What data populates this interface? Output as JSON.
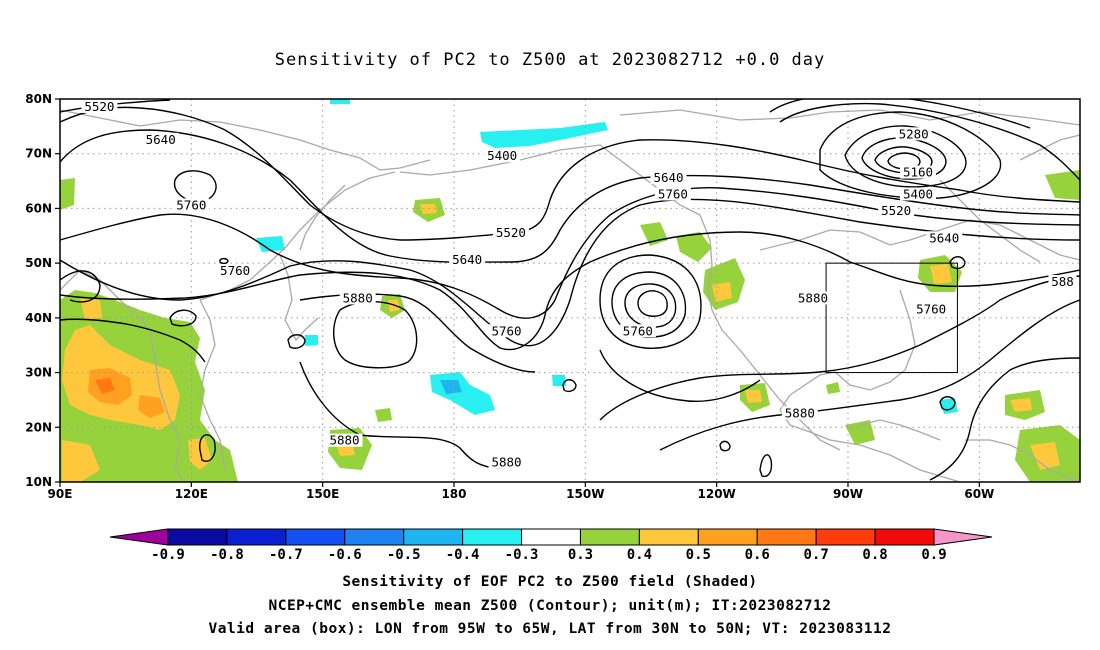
{
  "title": "Sensitivity of PC2 to Z500 at 2023082712 +0.0 day",
  "map": {
    "lon_labels": [
      {
        "text": "90E",
        "lon": 90
      },
      {
        "text": "120E",
        "lon": 120
      },
      {
        "text": "150E",
        "lon": 150
      },
      {
        "text": "180",
        "lon": 180
      },
      {
        "text": "150W",
        "lon": 210
      },
      {
        "text": "120W",
        "lon": 240
      },
      {
        "text": "90W",
        "lon": 270
      },
      {
        "text": "60W",
        "lon": 300
      }
    ],
    "lat_labels": [
      {
        "text": "80N",
        "lat": 80
      },
      {
        "text": "70N",
        "lat": 70
      },
      {
        "text": "60N",
        "lat": 60
      },
      {
        "text": "50N",
        "lat": 50
      },
      {
        "text": "40N",
        "lat": 40
      },
      {
        "text": "30N",
        "lat": 30
      },
      {
        "text": "20N",
        "lat": 20
      },
      {
        "text": "10N",
        "lat": 10
      }
    ],
    "lon_range": [
      90,
      323
    ],
    "lat_range": [
      10,
      80
    ],
    "valid_box": {
      "lon": [
        265,
        295
      ],
      "lat": [
        30,
        50
      ]
    },
    "contour_labels": [
      {
        "text": "5520",
        "lon": 99,
        "lat": 78
      },
      {
        "text": "5640",
        "lon": 113,
        "lat": 72
      },
      {
        "text": "5760",
        "lon": 120,
        "lat": 60
      },
      {
        "text": "5400",
        "lon": 191,
        "lat": 69
      },
      {
        "text": "5520",
        "lon": 193,
        "lat": 55
      },
      {
        "text": "5640",
        "lon": 183,
        "lat": 50
      },
      {
        "text": "5760",
        "lon": 130,
        "lat": 48
      },
      {
        "text": "5880",
        "lon": 158,
        "lat": 43
      },
      {
        "text": "5760",
        "lon": 192,
        "lat": 37
      },
      {
        "text": "5760",
        "lon": 222,
        "lat": 37
      },
      {
        "text": "5640",
        "lon": 229,
        "lat": 65
      },
      {
        "text": "5760",
        "lon": 230,
        "lat": 62
      },
      {
        "text": "5880",
        "lon": 262,
        "lat": 43
      },
      {
        "text": "5880",
        "lon": 259,
        "lat": 22
      },
      {
        "text": "5880",
        "lon": 155,
        "lat": 17
      },
      {
        "text": "5880",
        "lon": 192,
        "lat": 13
      },
      {
        "text": "5280",
        "lon": 285,
        "lat": 73
      },
      {
        "text": "5160",
        "lon": 286,
        "lat": 66
      },
      {
        "text": "5400",
        "lon": 286,
        "lat": 62
      },
      {
        "text": "5520",
        "lon": 281,
        "lat": 59
      },
      {
        "text": "5640",
        "lon": 292,
        "lat": 54
      },
      {
        "text": "5760",
        "lon": 289,
        "lat": 41
      },
      {
        "text": "588",
        "lon": 319,
        "lat": 46
      }
    ]
  },
  "colorbar": {
    "colors": [
      "#a0009e",
      "#0a0aa0",
      "#0a1fd0",
      "#1450f0",
      "#1e82f0",
      "#1eb4f0",
      "#28f0f0",
      "#ffffff",
      "#96d23c",
      "#ffc83c",
      "#ffa020",
      "#ff7814",
      "#ff3c0a",
      "#f00a0a",
      "#f596c8"
    ],
    "labels": [
      "-0.9",
      "-0.8",
      "-0.7",
      "-0.6",
      "-0.5",
      "-0.4",
      "-0.3",
      "0.3",
      "0.4",
      "0.5",
      "0.6",
      "0.7",
      "0.8",
      "0.9"
    ]
  },
  "captions": {
    "line1": "Sensitivity of EOF PC2 to Z500 field (Shaded)",
    "line2": "NCEP+CMC ensemble mean Z500 (Contour); unit(m); IT:2023082712",
    "line3": "Valid area (box): LON from 95W to 65W, LAT from 30N to 50N; VT: 2023083112"
  }
}
